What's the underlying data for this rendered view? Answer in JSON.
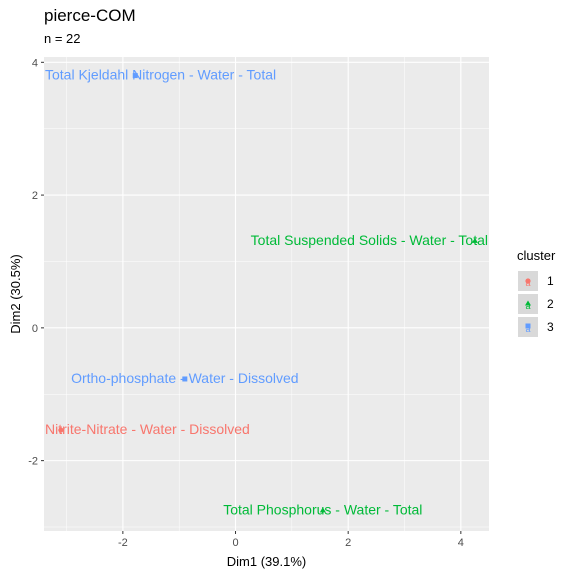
{
  "colors": {
    "panel_bg": "#ebebeb",
    "grid": "#ffffff",
    "cluster_1": "#f8766d",
    "cluster_2": "#00ba38",
    "cluster_3": "#619cff"
  },
  "chart_data": {
    "type": "scatter",
    "title": "pierce-COM",
    "subtitle": "n = 22",
    "xlabel": "Dim1 (39.1%)",
    "ylabel": "Dim2 (30.5%)",
    "xlim": [
      -3.4,
      4.5
    ],
    "ylim": [
      -3.06,
      4.08
    ],
    "xticks": [
      -2,
      0,
      2,
      4
    ],
    "yticks": [
      -2,
      0,
      2,
      4
    ],
    "grid": true,
    "legend": {
      "title": "cluster",
      "position": "right",
      "entries": [
        {
          "label": "1",
          "color": "#f8766d",
          "shape": "circle"
        },
        {
          "label": "2",
          "color": "#00ba38",
          "shape": "triangle"
        },
        {
          "label": "3",
          "color": "#619cff",
          "shape": "square"
        }
      ]
    },
    "points": [
      {
        "label": "Total Kjeldahl Nitrogen - Water - Total",
        "x": -1.78,
        "y": 3.8,
        "cluster": "3"
      },
      {
        "label": "Total Suspended Solids - Water - Total",
        "x": 4.25,
        "y": 1.31,
        "cluster": "2"
      },
      {
        "label": "Ortho-phosphate - Water - Dissolved",
        "x": -0.9,
        "y": -0.77,
        "cluster": "3"
      },
      {
        "label": "Nitrite-Nitrate - Water - Dissolved",
        "x": -3.1,
        "y": -1.54,
        "cluster": "1"
      },
      {
        "label": "Total Phosphorus - Water - Total",
        "x": 1.55,
        "y": -2.75,
        "cluster": "2"
      }
    ]
  }
}
